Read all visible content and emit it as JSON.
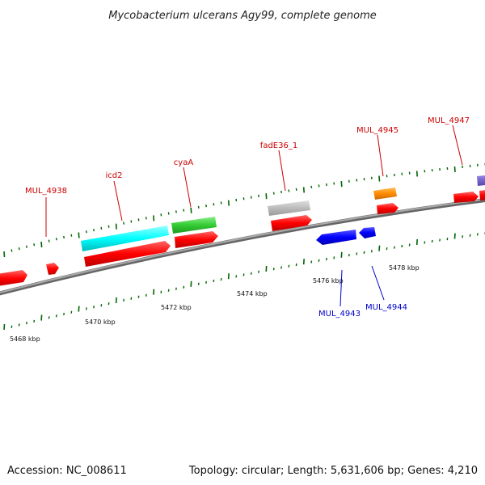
{
  "title": "Mycobacterium ulcerans Agy99, complete genome",
  "footer": {
    "accession": "Accession: NC_008611",
    "summary": "Topology: circular; Length: 5,631,606 bp; Genes: 4,210"
  },
  "tick_labels": [
    "5468 kbp",
    "5470 kbp",
    "5472 kbp",
    "5474 kbp",
    "5476 kbp",
    "5478 kbp"
  ],
  "gene_labels": [
    {
      "name": "MUL_4938",
      "color": "#cc0000"
    },
    {
      "name": "icd2",
      "color": "#cc0000"
    },
    {
      "name": "cyaA",
      "color": "#cc0000"
    },
    {
      "name": "fadE36_1",
      "color": "#cc0000"
    },
    {
      "name": "MUL_4945",
      "color": "#cc0000"
    },
    {
      "name": "MUL_4947",
      "color": "#cc0000"
    },
    {
      "name": "MUL_4943",
      "color": "#0000cc"
    },
    {
      "name": "MUL_4944",
      "color": "#0000cc"
    }
  ],
  "colors": {
    "forward_cds": "#ff0000",
    "reverse_cds": "#0000ff",
    "feature_cyan": "#00ffff",
    "feature_green": "#33cc33",
    "feature_gray": "#bbbbbb",
    "feature_orange": "#ff8c00",
    "feature_purple": "#7766cc",
    "backbone": "#888888",
    "tick": "#006600"
  }
}
